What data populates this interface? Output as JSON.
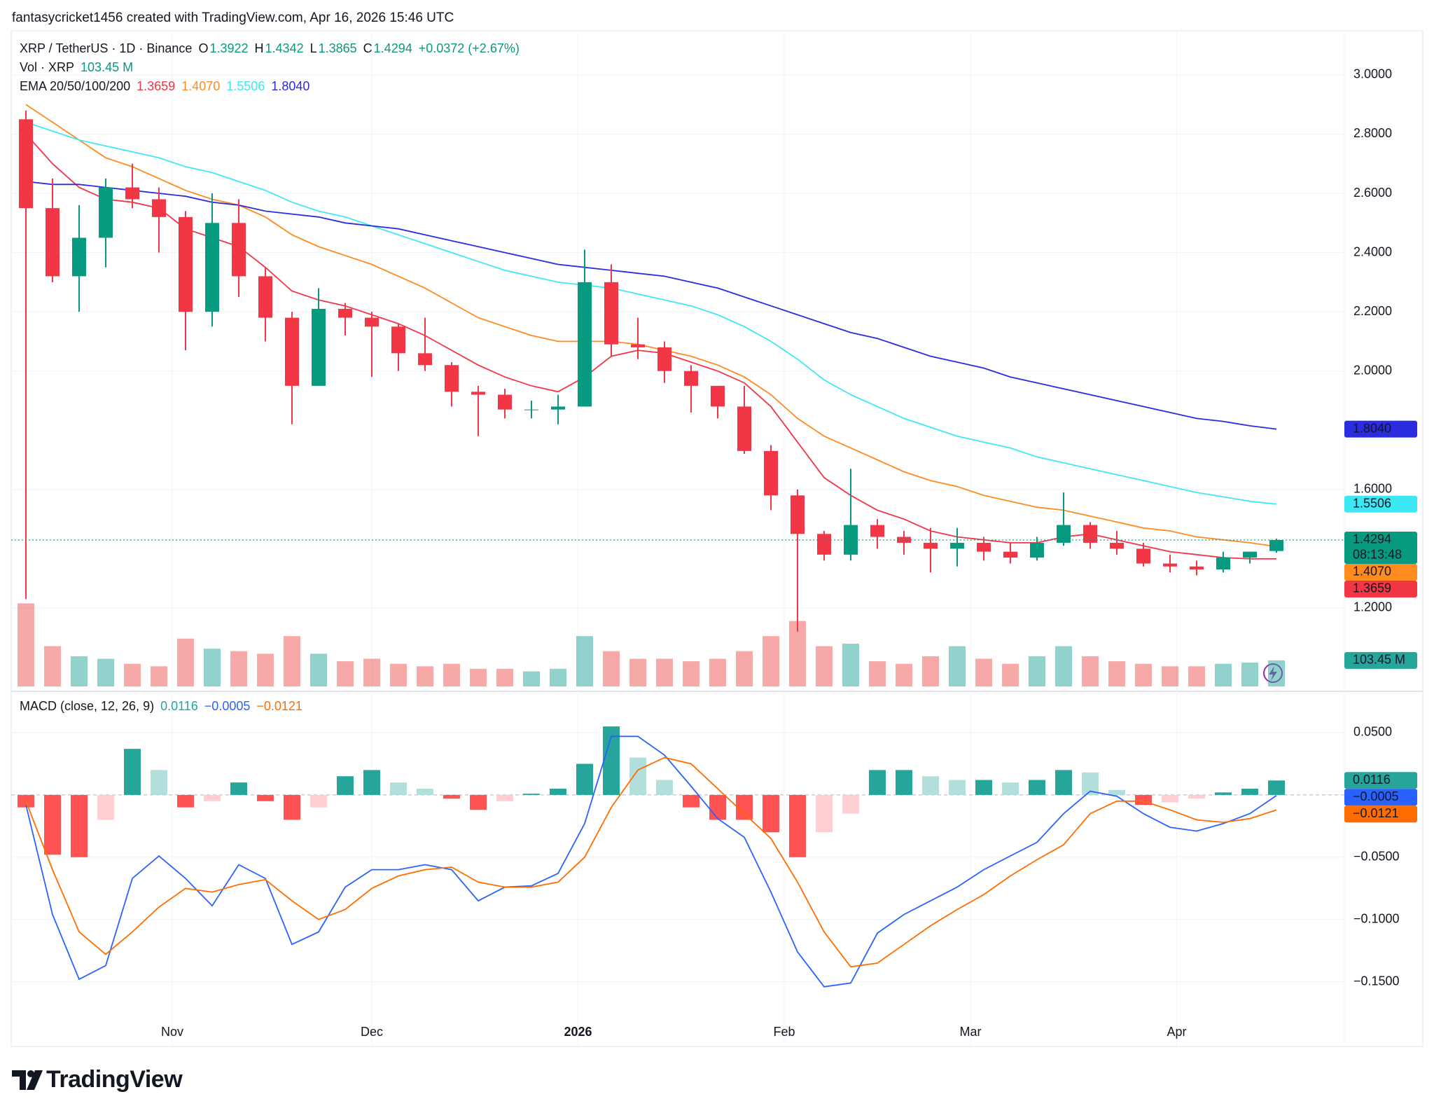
{
  "chart_data": {
    "type": "candlestick",
    "header": "fantasycricket1456 created with TradingView.com, Apr 16, 2026 15:46 UTC",
    "symbol": "XRP / TetherUS · 1D · Binance",
    "ohlc": [
      {
        "letter": "O",
        "value": "1.3922"
      },
      {
        "letter": "H",
        "value": "1.4342"
      },
      {
        "letter": "L",
        "value": "1.3865"
      },
      {
        "letter": "C",
        "value": "1.4294"
      }
    ],
    "change": "+0.0372 (+2.67%)",
    "ema_title": "EMA 20/50/100/200",
    "brand": "TradingView",
    "x_ticks": [
      {
        "value": 5.5,
        "label": "Nov"
      },
      {
        "value": 13,
        "label": "Dec"
      },
      {
        "value": 20.75,
        "label": "2026"
      },
      {
        "value": 28.5,
        "label": "Feb"
      },
      {
        "value": 35.5,
        "label": "Mar"
      },
      {
        "value": 43.25,
        "label": "Apr"
      }
    ],
    "ylim": [
      0.935,
      3.144
    ],
    "yticks": [
      {
        "value": 1.2,
        "label": "1.2000"
      },
      {
        "value": 1.6,
        "label": "1.6000"
      },
      {
        "value": 2.0,
        "label": "2.0000"
      },
      {
        "value": 2.2,
        "label": "2.2000"
      },
      {
        "value": 2.4,
        "label": "2.4000"
      },
      {
        "value": 2.6,
        "label": "2.6000"
      },
      {
        "value": 2.8,
        "label": "2.8000"
      },
      {
        "value": 3.0,
        "label": "3.0000"
      }
    ],
    "grid": true,
    "up_color": "#089981",
    "down_color": "#f23645",
    "candles": {
      "open": [
        2.85,
        2.55,
        2.32,
        2.45,
        2.62,
        2.58,
        2.52,
        2.2,
        2.5,
        2.32,
        2.18,
        1.95,
        2.21,
        2.18,
        2.15,
        2.06,
        2.02,
        1.93,
        1.92,
        1.87,
        1.87,
        1.88,
        2.3,
        2.09,
        2.08,
        2.0,
        1.95,
        1.88,
        1.73,
        1.58,
        1.45,
        1.38,
        1.48,
        1.44,
        1.42,
        1.4,
        1.42,
        1.39,
        1.37,
        1.42,
        1.48,
        1.42,
        1.4,
        1.35,
        1.34,
        1.33,
        1.37,
        1.3922
      ],
      "high": [
        2.88,
        2.65,
        2.56,
        2.65,
        2.7,
        2.62,
        2.54,
        2.6,
        2.58,
        2.35,
        2.2,
        2.28,
        2.23,
        2.2,
        2.16,
        2.18,
        2.03,
        1.95,
        1.94,
        1.9,
        1.92,
        2.41,
        2.36,
        2.18,
        2.1,
        2.02,
        1.95,
        1.95,
        1.75,
        1.6,
        1.46,
        1.67,
        1.5,
        1.46,
        1.47,
        1.47,
        1.44,
        1.42,
        1.44,
        1.59,
        1.49,
        1.46,
        1.42,
        1.38,
        1.36,
        1.39,
        1.39,
        1.4342
      ],
      "low": [
        1.23,
        2.3,
        2.2,
        2.35,
        2.55,
        2.4,
        2.07,
        2.15,
        2.25,
        2.1,
        1.82,
        1.95,
        2.12,
        1.98,
        2.0,
        2.0,
        1.88,
        1.78,
        1.84,
        1.84,
        1.82,
        1.88,
        2.05,
        2.04,
        1.96,
        1.86,
        1.84,
        1.72,
        1.53,
        1.12,
        1.36,
        1.36,
        1.4,
        1.38,
        1.32,
        1.34,
        1.36,
        1.35,
        1.36,
        1.41,
        1.4,
        1.38,
        1.34,
        1.32,
        1.31,
        1.32,
        1.35,
        1.3865
      ],
      "close": [
        2.55,
        2.32,
        2.45,
        2.62,
        2.58,
        2.52,
        2.2,
        2.5,
        2.32,
        2.18,
        1.95,
        2.21,
        2.18,
        2.15,
        2.06,
        2.02,
        1.93,
        1.92,
        1.87,
        1.87,
        1.88,
        2.3,
        2.09,
        2.08,
        2.0,
        1.95,
        1.88,
        1.73,
        1.58,
        1.45,
        1.38,
        1.48,
        1.44,
        1.42,
        1.4,
        1.42,
        1.39,
        1.37,
        1.42,
        1.48,
        1.42,
        1.4,
        1.35,
        1.34,
        1.33,
        1.37,
        1.39,
        1.4294
      ]
    },
    "last_price_label": "1.4294",
    "countdown": "08:13:48",
    "ema": [
      {
        "color": "#f23645",
        "badge_text": "#ffffff",
        "value_label": "1.3659",
        "values": [
          2.8,
          2.7,
          2.62,
          2.58,
          2.57,
          2.55,
          2.48,
          2.45,
          2.42,
          2.35,
          2.27,
          2.24,
          2.22,
          2.19,
          2.16,
          2.12,
          2.07,
          2.02,
          1.98,
          1.95,
          1.93,
          1.98,
          2.05,
          2.07,
          2.06,
          2.03,
          2.0,
          1.96,
          1.88,
          1.76,
          1.64,
          1.58,
          1.53,
          1.5,
          1.46,
          1.44,
          1.43,
          1.42,
          1.42,
          1.44,
          1.45,
          1.43,
          1.41,
          1.39,
          1.38,
          1.37,
          1.366,
          1.3659
        ]
      },
      {
        "color": "#ff8a1f",
        "badge_text": "#ffffff",
        "value_label": "1.4070",
        "values": [
          2.9,
          2.84,
          2.78,
          2.72,
          2.69,
          2.65,
          2.61,
          2.58,
          2.56,
          2.52,
          2.46,
          2.42,
          2.39,
          2.36,
          2.32,
          2.28,
          2.23,
          2.18,
          2.15,
          2.12,
          2.1,
          2.1,
          2.1,
          2.09,
          2.07,
          2.05,
          2.02,
          1.98,
          1.92,
          1.84,
          1.78,
          1.74,
          1.7,
          1.66,
          1.63,
          1.61,
          1.58,
          1.56,
          1.54,
          1.53,
          1.51,
          1.49,
          1.47,
          1.46,
          1.44,
          1.43,
          1.42,
          1.407
        ]
      },
      {
        "color": "#3de8f5",
        "badge_text": "#131722",
        "value_label": "1.5506",
        "values": [
          2.84,
          2.81,
          2.78,
          2.76,
          2.74,
          2.72,
          2.69,
          2.67,
          2.64,
          2.61,
          2.57,
          2.54,
          2.52,
          2.49,
          2.46,
          2.43,
          2.4,
          2.37,
          2.34,
          2.32,
          2.3,
          2.29,
          2.28,
          2.26,
          2.24,
          2.22,
          2.19,
          2.15,
          2.1,
          2.04,
          1.97,
          1.92,
          1.88,
          1.84,
          1.81,
          1.78,
          1.76,
          1.74,
          1.71,
          1.69,
          1.67,
          1.65,
          1.63,
          1.61,
          1.59,
          1.575,
          1.56,
          1.5506
        ]
      },
      {
        "color": "#2b2be0",
        "badge_text": "#ffffff",
        "value_label": "1.8040",
        "values": [
          2.64,
          2.63,
          2.63,
          2.62,
          2.61,
          2.6,
          2.59,
          2.57,
          2.56,
          2.54,
          2.53,
          2.52,
          2.5,
          2.49,
          2.48,
          2.46,
          2.44,
          2.42,
          2.4,
          2.38,
          2.36,
          2.35,
          2.34,
          2.33,
          2.32,
          2.3,
          2.28,
          2.25,
          2.22,
          2.19,
          2.16,
          2.13,
          2.11,
          2.08,
          2.05,
          2.03,
          2.01,
          1.98,
          1.96,
          1.94,
          1.92,
          1.9,
          1.88,
          1.86,
          1.84,
          1.83,
          1.815,
          1.804
        ]
      }
    ],
    "volume": {
      "name": "Vol · XRP",
      "value_label": "103.45 M",
      "ylim": [
        0,
        2600
      ],
      "up_color": "rgba(38,166,154,0.5)",
      "down_color": "rgba(239,83,80,0.5)",
      "badge_color": "#26a69a",
      "values": [
        330,
        160,
        120,
        110,
        90,
        80,
        190,
        150,
        140,
        130,
        200,
        130,
        100,
        110,
        90,
        80,
        90,
        70,
        70,
        60,
        70,
        200,
        140,
        110,
        110,
        100,
        110,
        140,
        200,
        260,
        160,
        170,
        100,
        90,
        120,
        160,
        110,
        90,
        120,
        160,
        120,
        100,
        90,
        80,
        80,
        90,
        95,
        103.45
      ]
    },
    "macd": {
      "title": "MACD (close, 12, 26, 9)",
      "ylim": [
        -0.18,
        0.0798
      ],
      "yticks": [
        {
          "value": 0.05,
          "label": "0.0500"
        },
        {
          "value": -0.05,
          "label": "−0.0500"
        },
        {
          "value": -0.1,
          "label": "−0.1000"
        },
        {
          "value": -0.15,
          "label": "−0.1500"
        }
      ],
      "histogram": {
        "value_label": "0.0116",
        "colors": {
          "up_grow": "#26a69a",
          "up_fall": "#b2dfdb",
          "down_grow": "#ff5252",
          "down_fall": "#ffcdd2"
        },
        "values": [
          -0.01,
          -0.048,
          -0.05,
          -0.02,
          0.037,
          0.02,
          -0.01,
          -0.005,
          0.01,
          -0.005,
          -0.02,
          -0.01,
          0.015,
          0.02,
          0.01,
          0.005,
          -0.003,
          -0.012,
          -0.005,
          0.001,
          0.005,
          0.025,
          0.055,
          0.03,
          0.012,
          -0.01,
          -0.02,
          -0.02,
          -0.03,
          -0.05,
          -0.03,
          -0.015,
          0.02,
          0.02,
          0.015,
          0.012,
          0.012,
          0.01,
          0.012,
          0.02,
          0.018,
          0.004,
          -0.008,
          -0.006,
          -0.003,
          0.002,
          0.005,
          0.0116
        ]
      },
      "line": {
        "color": "#2962ff",
        "value_label": "−0.0005",
        "values": [
          -0.008,
          -0.096,
          -0.148,
          -0.137,
          -0.067,
          -0.049,
          -0.067,
          -0.089,
          -0.056,
          -0.067,
          -0.12,
          -0.11,
          -0.074,
          -0.06,
          -0.06,
          -0.056,
          -0.06,
          -0.085,
          -0.074,
          -0.073,
          -0.063,
          -0.023,
          0.047,
          0.047,
          0.032,
          0.007,
          -0.019,
          -0.034,
          -0.078,
          -0.126,
          -0.154,
          -0.151,
          -0.111,
          -0.096,
          -0.085,
          -0.074,
          -0.06,
          -0.049,
          -0.038,
          -0.015,
          0.003,
          -0.001,
          -0.015,
          -0.026,
          -0.029,
          -0.023,
          -0.015,
          -0.0005
        ]
      },
      "signal": {
        "color": "#ff6d00",
        "value_label": "−0.0121",
        "values": [
          -0.005,
          -0.06,
          -0.11,
          -0.128,
          -0.11,
          -0.09,
          -0.075,
          -0.078,
          -0.072,
          -0.068,
          -0.085,
          -0.1,
          -0.092,
          -0.075,
          -0.065,
          -0.06,
          -0.058,
          -0.07,
          -0.074,
          -0.074,
          -0.07,
          -0.05,
          -0.01,
          0.02,
          0.03,
          0.025,
          0.005,
          -0.015,
          -0.035,
          -0.07,
          -0.11,
          -0.138,
          -0.135,
          -0.12,
          -0.105,
          -0.092,
          -0.08,
          -0.065,
          -0.052,
          -0.04,
          -0.015,
          -0.005,
          -0.005,
          -0.012,
          -0.02,
          -0.022,
          -0.019,
          -0.0121
        ]
      }
    }
  }
}
